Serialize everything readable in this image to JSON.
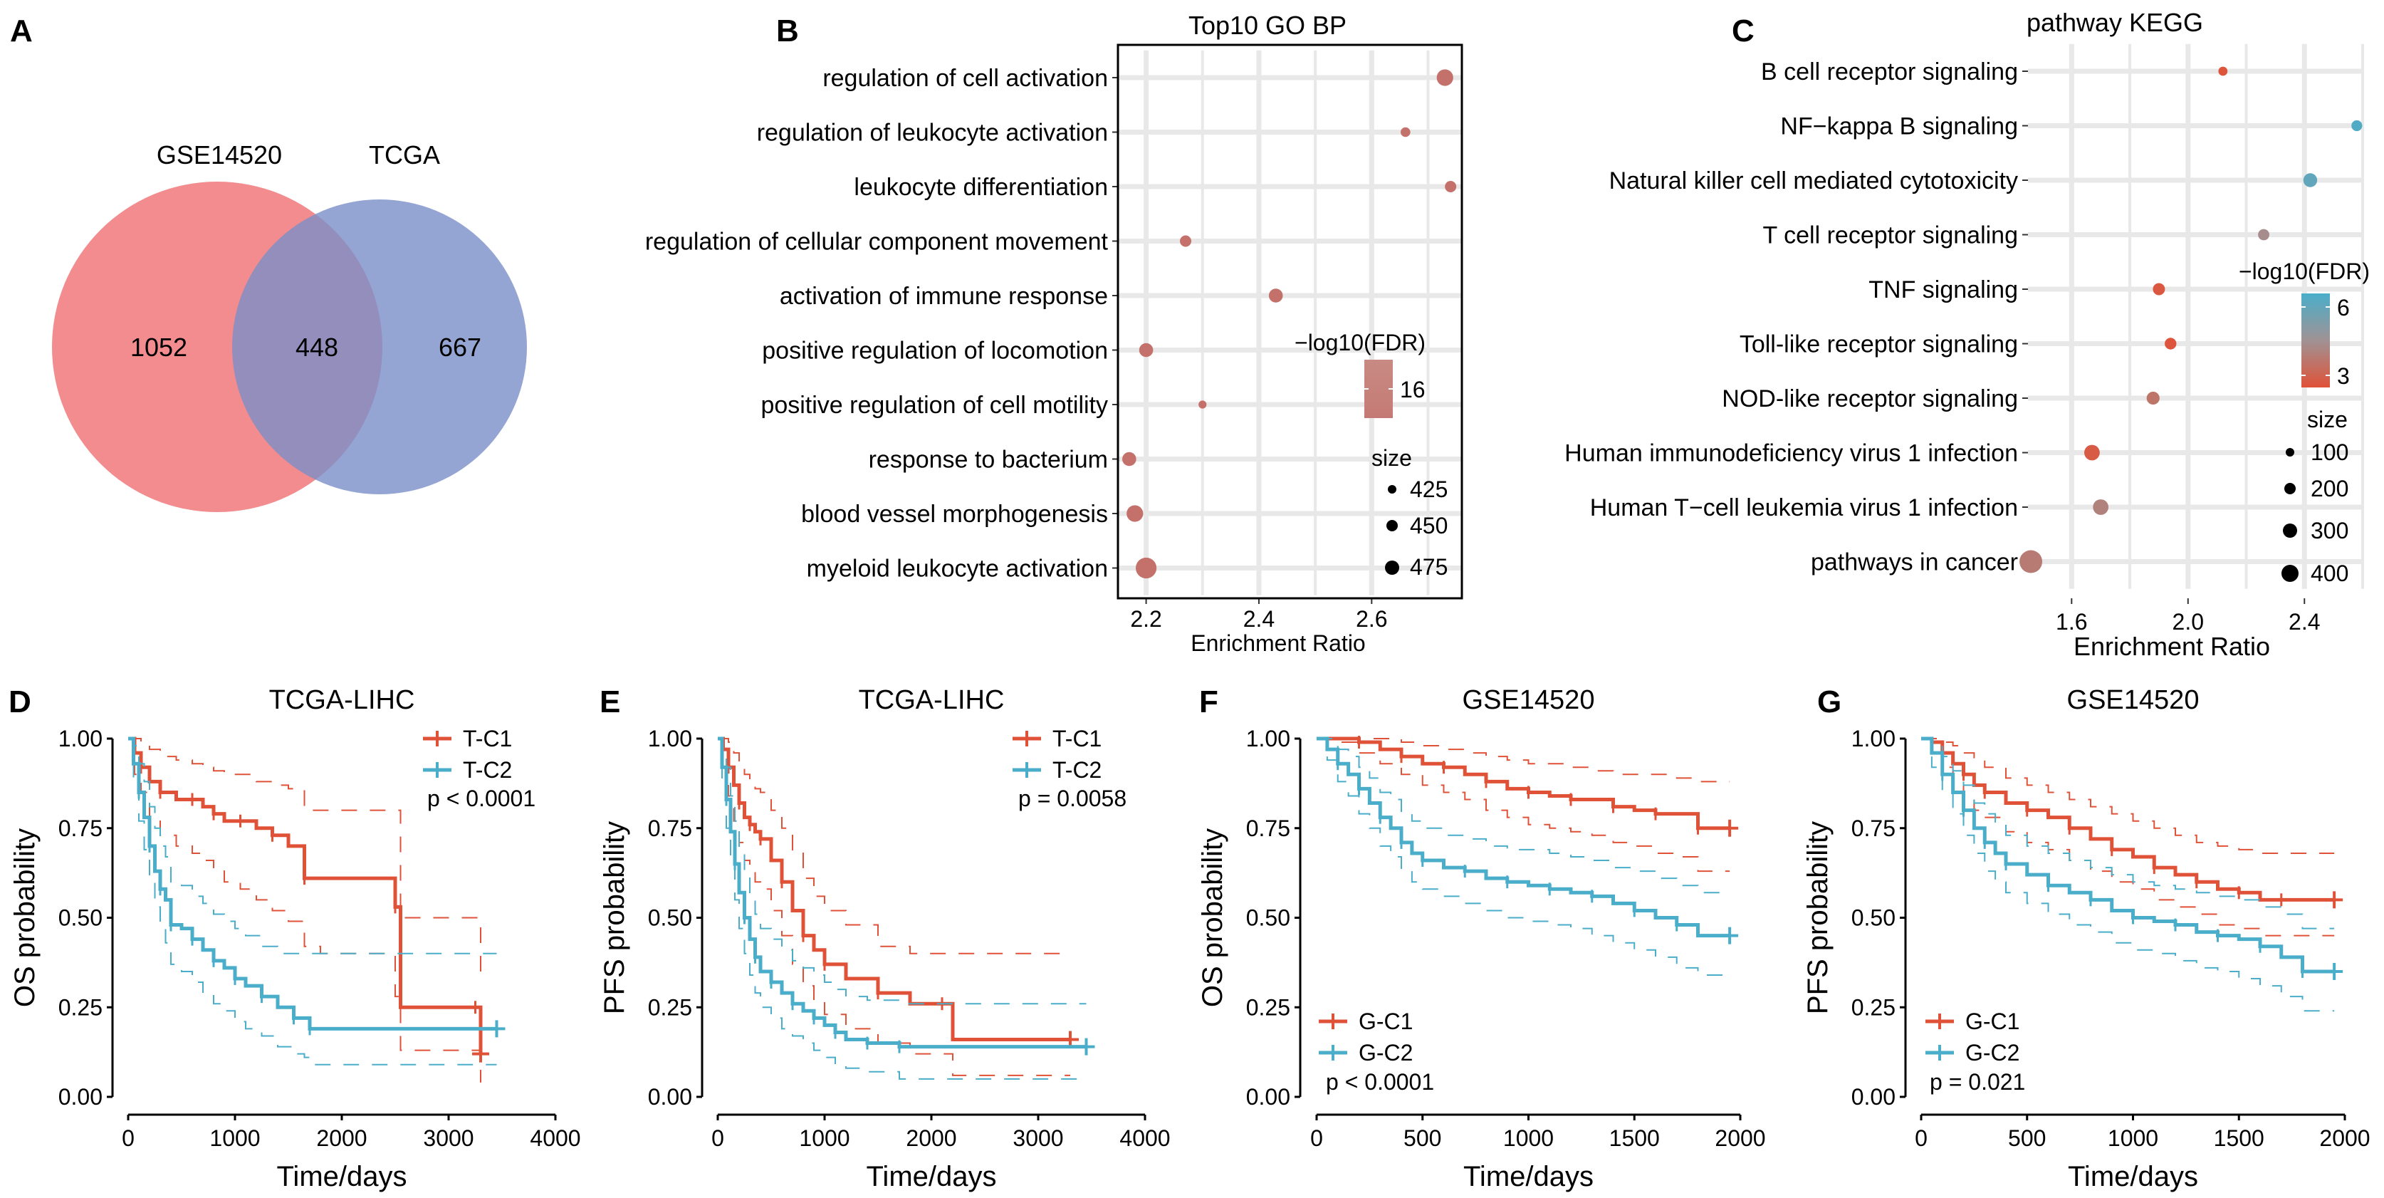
{
  "colors": {
    "venn_left": "#ef6f72",
    "venn_right": "#7b8ec8",
    "red": "#e05238",
    "blue": "#4aaeca",
    "dot": "#c4716c",
    "grid": "#e8e8e8"
  },
  "chart_data": [
    {
      "panel": "A",
      "type": "venn",
      "sets": [
        {
          "name": "GSE14520",
          "only": "1052"
        },
        {
          "name": "TCGA",
          "only": "667"
        }
      ],
      "intersection": "448"
    },
    {
      "panel": "B",
      "type": "scatter",
      "title": "Top10 GO BP",
      "xlabel": "Enrichment Ratio",
      "xlim": [
        2.15,
        2.76
      ],
      "xticks": [
        "2.2",
        "2.4",
        "2.6"
      ],
      "categories": [
        "regulation of cell activation",
        "regulation of leukocyte activation",
        "leukocyte differentiation",
        "regulation of cellular component movement",
        "activation of immune response",
        "positive regulation of locomotion",
        "positive regulation of cell motility",
        "response to bacterium",
        "blood vessel morphogenesis",
        "myeloid leukocyte activation"
      ],
      "x": [
        2.73,
        2.66,
        2.74,
        2.27,
        2.43,
        2.2,
        2.3,
        2.17,
        2.18,
        2.2
      ],
      "size": [
        455,
        415,
        425,
        425,
        440,
        440,
        405,
        440,
        455,
        480
      ],
      "color_legend": {
        "title": "−log10(FDR)",
        "ticks": [
          "16"
        ]
      },
      "size_legend": {
        "title": "size",
        "values": [
          "425",
          "450",
          "475"
        ]
      }
    },
    {
      "panel": "C",
      "type": "scatter",
      "title": "pathway KEGG",
      "xlabel": "Enrichment Ratio",
      "xlim": [
        1.45,
        2.6
      ],
      "xticks": [
        "1.6",
        "2.0",
        "2.4"
      ],
      "categories": [
        "B cell receptor signaling",
        "NF−kappa B signaling",
        "Natural killer cell mediated cytotoxicity",
        "T cell receptor signaling",
        "TNF signaling",
        "Toll-like receptor signaling",
        "NOD-like receptor signaling",
        "Human immunodeficiency virus 1 infection",
        "Human T−cell leukemia virus 1 infection",
        "pathways in cancer"
      ],
      "x": [
        2.12,
        2.58,
        2.42,
        2.26,
        1.9,
        1.94,
        1.88,
        1.67,
        1.7,
        1.46
      ],
      "size": [
        80,
        120,
        190,
        130,
        150,
        140,
        170,
        230,
        230,
        400
      ],
      "fdr": [
        2.5,
        6.6,
        6.2,
        4.4,
        2.6,
        2.5,
        3.6,
        2.7,
        4.0,
        3.8
      ],
      "color_legend": {
        "title": "−log10(FDR)",
        "ticks": [
          "6",
          "3"
        ]
      },
      "size_legend": {
        "title": "size",
        "values": [
          "100",
          "200",
          "300",
          "400"
        ]
      }
    },
    {
      "panel": "D",
      "type": "line",
      "title": "TCGA-LIHC",
      "ylabel": "OS probability",
      "xlabel": "Time/days",
      "xticks": [
        "0",
        "1000",
        "2000",
        "3000",
        "4000"
      ],
      "yticks": [
        "0.00",
        "0.25",
        "0.50",
        "0.75",
        "1.00"
      ],
      "xlim": [
        0,
        4000
      ],
      "ylim": [
        0,
        1
      ],
      "pvalue": "p < 0.0001",
      "legend_pos": "top-right",
      "series": [
        {
          "name": "T-C1",
          "color": "red",
          "x": [
            0,
            60,
            120,
            200,
            300,
            450,
            600,
            700,
            800,
            900,
            1050,
            1200,
            1350,
            1500,
            1650,
            1800,
            2500,
            2550,
            3250,
            3300
          ],
          "y": [
            1.0,
            0.96,
            0.92,
            0.88,
            0.85,
            0.83,
            0.83,
            0.81,
            0.79,
            0.77,
            0.77,
            0.75,
            0.73,
            0.7,
            0.61,
            0.61,
            0.53,
            0.25,
            0.25,
            0.12
          ],
          "lower": [
            1.0,
            0.9,
            0.85,
            0.78,
            0.73,
            0.7,
            0.68,
            0.66,
            0.63,
            0.6,
            0.58,
            0.55,
            0.52,
            0.49,
            0.42,
            0.4,
            0.28,
            0.13,
            0.13,
            0.04
          ],
          "upper": [
            1.0,
            1.0,
            0.99,
            0.97,
            0.95,
            0.94,
            0.93,
            0.92,
            0.91,
            0.9,
            0.9,
            0.88,
            0.87,
            0.86,
            0.8,
            0.8,
            0.8,
            0.5,
            0.5,
            0.35
          ]
        },
        {
          "name": "T-C2",
          "color": "blue",
          "x": [
            0,
            50,
            100,
            150,
            200,
            250,
            300,
            350,
            400,
            500,
            600,
            700,
            800,
            900,
            1000,
            1100,
            1250,
            1400,
            1550,
            1650,
            1700,
            3450
          ],
          "y": [
            1.0,
            0.93,
            0.85,
            0.78,
            0.7,
            0.63,
            0.58,
            0.55,
            0.48,
            0.47,
            0.44,
            0.41,
            0.38,
            0.36,
            0.33,
            0.31,
            0.28,
            0.25,
            0.22,
            0.22,
            0.19,
            0.19
          ],
          "lower": [
            1.0,
            0.87,
            0.77,
            0.69,
            0.6,
            0.53,
            0.47,
            0.43,
            0.37,
            0.35,
            0.32,
            0.29,
            0.26,
            0.24,
            0.21,
            0.19,
            0.17,
            0.14,
            0.12,
            0.11,
            0.09,
            0.09
          ],
          "upper": [
            1.0,
            0.98,
            0.93,
            0.88,
            0.81,
            0.75,
            0.7,
            0.67,
            0.6,
            0.59,
            0.56,
            0.54,
            0.51,
            0.49,
            0.47,
            0.45,
            0.42,
            0.4,
            0.4,
            0.4,
            0.4,
            0.4
          ]
        }
      ]
    },
    {
      "panel": "E",
      "type": "line",
      "title": "TCGA-LIHC",
      "ylabel": "PFS probability",
      "xlabel": "Time/days",
      "xticks": [
        "0",
        "1000",
        "2000",
        "3000",
        "4000"
      ],
      "yticks": [
        "0.00",
        "0.25",
        "0.50",
        "0.75",
        "1.00"
      ],
      "xlim": [
        0,
        4000
      ],
      "ylim": [
        0,
        1
      ],
      "pvalue": "p = 0.0058",
      "legend_pos": "top-right",
      "series": [
        {
          "name": "T-C1",
          "color": "red",
          "x": [
            0,
            50,
            100,
            150,
            200,
            250,
            300,
            350,
            400,
            500,
            600,
            700,
            800,
            900,
            1000,
            1200,
            1500,
            1800,
            2100,
            2200,
            3300
          ],
          "y": [
            1.0,
            0.97,
            0.92,
            0.87,
            0.82,
            0.78,
            0.76,
            0.74,
            0.72,
            0.66,
            0.6,
            0.52,
            0.45,
            0.41,
            0.37,
            0.33,
            0.29,
            0.26,
            0.26,
            0.16,
            0.16
          ],
          "lower": [
            1.0,
            0.92,
            0.84,
            0.77,
            0.71,
            0.66,
            0.63,
            0.6,
            0.58,
            0.52,
            0.45,
            0.37,
            0.31,
            0.27,
            0.23,
            0.19,
            0.15,
            0.12,
            0.12,
            0.06,
            0.06
          ],
          "upper": [
            1.0,
            1.0,
            0.99,
            0.96,
            0.93,
            0.9,
            0.88,
            0.86,
            0.85,
            0.8,
            0.75,
            0.68,
            0.61,
            0.56,
            0.52,
            0.48,
            0.42,
            0.4,
            0.4,
            0.4,
            0.4
          ]
        },
        {
          "name": "T-C2",
          "color": "blue",
          "x": [
            0,
            40,
            80,
            120,
            160,
            200,
            250,
            300,
            350,
            400,
            500,
            600,
            700,
            800,
            900,
            1000,
            1100,
            1200,
            1400,
            1600,
            1700,
            3450
          ],
          "y": [
            1.0,
            0.92,
            0.83,
            0.74,
            0.65,
            0.57,
            0.5,
            0.44,
            0.39,
            0.35,
            0.32,
            0.29,
            0.26,
            0.24,
            0.22,
            0.2,
            0.18,
            0.16,
            0.15,
            0.15,
            0.14,
            0.14
          ],
          "lower": [
            1.0,
            0.86,
            0.75,
            0.65,
            0.55,
            0.47,
            0.4,
            0.34,
            0.29,
            0.25,
            0.22,
            0.19,
            0.17,
            0.15,
            0.13,
            0.11,
            0.09,
            0.08,
            0.07,
            0.07,
            0.05,
            0.05
          ],
          "upper": [
            1.0,
            0.97,
            0.92,
            0.84,
            0.77,
            0.69,
            0.62,
            0.56,
            0.51,
            0.47,
            0.44,
            0.41,
            0.38,
            0.36,
            0.34,
            0.32,
            0.3,
            0.28,
            0.27,
            0.27,
            0.26,
            0.26
          ]
        }
      ]
    },
    {
      "panel": "F",
      "type": "line",
      "title": "GSE14520",
      "ylabel": "OS probability",
      "xlabel": "Time/days",
      "xticks": [
        "0",
        "500",
        "1000",
        "1500",
        "2000"
      ],
      "yticks": [
        "0.00",
        "0.25",
        "0.50",
        "0.75",
        "1.00"
      ],
      "xlim": [
        0,
        2000
      ],
      "ylim": [
        0,
        1
      ],
      "pvalue": "p < 0.0001",
      "legend_pos": "bottom-left",
      "series": [
        {
          "name": "G-C1",
          "color": "red",
          "x": [
            0,
            100,
            200,
            300,
            400,
            500,
            600,
            700,
            800,
            900,
            1000,
            1100,
            1200,
            1300,
            1400,
            1500,
            1600,
            1700,
            1800,
            1950
          ],
          "y": [
            1.0,
            1.0,
            0.99,
            0.97,
            0.95,
            0.93,
            0.92,
            0.9,
            0.88,
            0.86,
            0.85,
            0.84,
            0.83,
            0.83,
            0.81,
            0.8,
            0.79,
            0.79,
            0.75,
            0.75
          ],
          "lower": [
            1.0,
            0.99,
            0.96,
            0.93,
            0.9,
            0.87,
            0.85,
            0.83,
            0.8,
            0.78,
            0.76,
            0.75,
            0.74,
            0.73,
            0.71,
            0.7,
            0.68,
            0.67,
            0.63,
            0.63
          ],
          "upper": [
            1.0,
            1.0,
            1.0,
            1.0,
            0.99,
            0.98,
            0.97,
            0.96,
            0.95,
            0.94,
            0.93,
            0.93,
            0.92,
            0.91,
            0.9,
            0.9,
            0.9,
            0.89,
            0.88,
            0.88
          ]
        },
        {
          "name": "G-C2",
          "color": "blue",
          "x": [
            0,
            50,
            100,
            150,
            200,
            250,
            300,
            350,
            400,
            450,
            500,
            600,
            700,
            800,
            900,
            1000,
            1100,
            1200,
            1300,
            1400,
            1500,
            1600,
            1700,
            1800,
            1950
          ],
          "y": [
            1.0,
            0.97,
            0.93,
            0.9,
            0.86,
            0.82,
            0.78,
            0.75,
            0.71,
            0.68,
            0.66,
            0.64,
            0.63,
            0.61,
            0.6,
            0.59,
            0.58,
            0.57,
            0.56,
            0.54,
            0.52,
            0.5,
            0.48,
            0.45,
            0.45
          ],
          "lower": [
            1.0,
            0.94,
            0.88,
            0.84,
            0.79,
            0.75,
            0.7,
            0.67,
            0.63,
            0.6,
            0.58,
            0.56,
            0.54,
            0.52,
            0.5,
            0.49,
            0.48,
            0.47,
            0.45,
            0.43,
            0.41,
            0.39,
            0.36,
            0.34,
            0.34
          ],
          "upper": [
            1.0,
            1.0,
            0.97,
            0.95,
            0.92,
            0.89,
            0.85,
            0.83,
            0.79,
            0.77,
            0.75,
            0.73,
            0.72,
            0.7,
            0.69,
            0.69,
            0.68,
            0.67,
            0.66,
            0.64,
            0.63,
            0.61,
            0.59,
            0.57,
            0.57
          ]
        }
      ]
    },
    {
      "panel": "G",
      "type": "line",
      "title": "GSE14520",
      "ylabel": "PFS probability",
      "xlabel": "Time/days",
      "xticks": [
        "0",
        "500",
        "1000",
        "1500",
        "2000"
      ],
      "yticks": [
        "0.00",
        "0.25",
        "0.50",
        "0.75",
        "1.00"
      ],
      "xlim": [
        0,
        2000
      ],
      "ylim": [
        0,
        1
      ],
      "pvalue": "p = 0.021",
      "legend_pos": "bottom-left",
      "series": [
        {
          "name": "G-C1",
          "color": "red",
          "x": [
            0,
            50,
            100,
            150,
            200,
            250,
            300,
            400,
            500,
            600,
            700,
            800,
            900,
            1000,
            1100,
            1200,
            1300,
            1400,
            1500,
            1600,
            1700,
            1800,
            1950
          ],
          "y": [
            1.0,
            0.99,
            0.96,
            0.93,
            0.9,
            0.87,
            0.85,
            0.82,
            0.8,
            0.78,
            0.75,
            0.72,
            0.69,
            0.67,
            0.64,
            0.62,
            0.6,
            0.58,
            0.57,
            0.55,
            0.55,
            0.55,
            0.55
          ],
          "lower": [
            1.0,
            0.96,
            0.92,
            0.88,
            0.84,
            0.8,
            0.78,
            0.74,
            0.71,
            0.69,
            0.66,
            0.63,
            0.6,
            0.58,
            0.55,
            0.53,
            0.51,
            0.48,
            0.47,
            0.45,
            0.45,
            0.45,
            0.45
          ],
          "upper": [
            1.0,
            1.0,
            0.99,
            0.98,
            0.96,
            0.94,
            0.92,
            0.89,
            0.87,
            0.85,
            0.83,
            0.81,
            0.79,
            0.77,
            0.75,
            0.73,
            0.71,
            0.7,
            0.69,
            0.68,
            0.68,
            0.68,
            0.68
          ]
        },
        {
          "name": "G-C2",
          "color": "blue",
          "x": [
            0,
            50,
            100,
            150,
            200,
            250,
            300,
            350,
            400,
            500,
            600,
            700,
            800,
            900,
            1000,
            1100,
            1200,
            1300,
            1400,
            1500,
            1600,
            1700,
            1800,
            1950
          ],
          "y": [
            1.0,
            0.96,
            0.9,
            0.85,
            0.8,
            0.75,
            0.71,
            0.68,
            0.65,
            0.62,
            0.59,
            0.57,
            0.55,
            0.52,
            0.5,
            0.49,
            0.48,
            0.46,
            0.45,
            0.44,
            0.42,
            0.39,
            0.35,
            0.35
          ],
          "lower": [
            1.0,
            0.92,
            0.85,
            0.79,
            0.73,
            0.68,
            0.63,
            0.6,
            0.57,
            0.54,
            0.51,
            0.48,
            0.46,
            0.43,
            0.41,
            0.4,
            0.38,
            0.36,
            0.35,
            0.33,
            0.31,
            0.28,
            0.24,
            0.24
          ],
          "upper": [
            1.0,
            0.99,
            0.95,
            0.91,
            0.87,
            0.82,
            0.79,
            0.76,
            0.73,
            0.7,
            0.68,
            0.66,
            0.64,
            0.62,
            0.6,
            0.59,
            0.58,
            0.57,
            0.56,
            0.55,
            0.53,
            0.51,
            0.47,
            0.47
          ]
        }
      ]
    }
  ]
}
